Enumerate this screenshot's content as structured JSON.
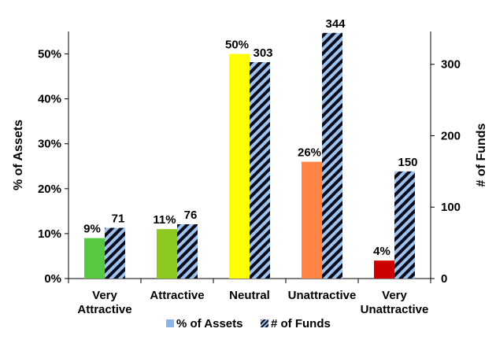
{
  "chart_data": {
    "type": "bar",
    "categories": [
      [
        "Very",
        "Attractive"
      ],
      [
        "Attractive"
      ],
      [
        "Neutral"
      ],
      [
        "Unattractive"
      ],
      [
        "Very",
        "Unattractive"
      ]
    ],
    "series": [
      {
        "name": "% of Assets",
        "axis": "left",
        "values": [
          9,
          11,
          50,
          26,
          4
        ],
        "labels": [
          "9%",
          "11%",
          "50%",
          "26%",
          "4%"
        ],
        "colors": [
          "#58c742",
          "#8dc81e",
          "#ffff00",
          "#ff8446",
          "#cc0000"
        ]
      },
      {
        "name": "# of Funds",
        "axis": "right",
        "values": [
          71,
          76,
          303,
          344,
          150
        ],
        "labels": [
          "71",
          "76",
          "303",
          "344",
          "150"
        ],
        "fill": "hatched-light-blue-black"
      }
    ],
    "ylabel_left": "% of Assets",
    "ylabel_right": "# of Funds",
    "ylim_left": [
      0,
      55
    ],
    "ylim_right": [
      0,
      346
    ],
    "yticks_left": [
      "0%",
      "10%",
      "20%",
      "30%",
      "40%",
      "50%"
    ],
    "yticks_right": [
      "0",
      "100",
      "200",
      "300"
    ],
    "legend_position": "bottom",
    "grid": false
  }
}
